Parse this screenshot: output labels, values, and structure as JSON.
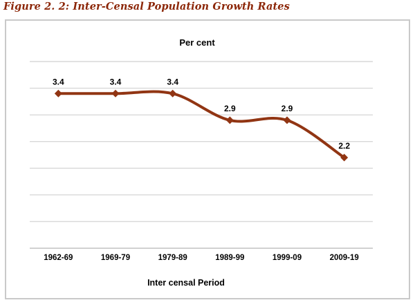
{
  "title": "Figure 2. 2: Inter-Censal Population Growth Rates",
  "chart_data": {
    "type": "line",
    "title": "Per cent",
    "xlabel": "Inter censal Period",
    "ylabel": "",
    "categories": [
      "1962-69",
      "1969-79",
      "1979-89",
      "1989-99",
      "1999-09",
      "2009-19"
    ],
    "values": [
      3.4,
      3.4,
      3.4,
      2.9,
      2.9,
      2.2
    ],
    "data_labels": [
      "3.4",
      "3.4",
      "3.4",
      "2.9",
      "2.9",
      "2.2"
    ],
    "ylim": [
      0.5,
      4.0
    ],
    "gridline_interval": 0.5,
    "grid": "horizontal",
    "legend": "none",
    "smoothed": true,
    "marker": "diamond"
  },
  "colors": {
    "figure_title": "#8C2709",
    "line": "#913513",
    "gridline": "#D8D8D8",
    "axis_line": "#C2C2C2",
    "chart_border": "#C9C9C9",
    "label_text": "#000000"
  }
}
